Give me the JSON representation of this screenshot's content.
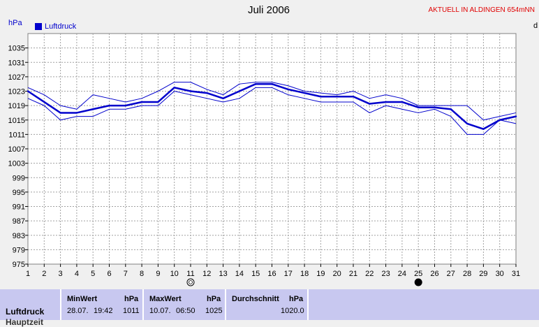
{
  "header": {
    "title": "Juli 2006",
    "location": "AKTUELL IN ALDINGEN 654mNN",
    "unit": "hPa",
    "legend_label": "Luftdruck",
    "edge_label": "d"
  },
  "colors": {
    "series": "#0000cc",
    "grid": "#a0a0a0",
    "plot_bg": "#ffffff",
    "stats_bg": "#c8c8f0"
  },
  "chart_data": {
    "type": "line",
    "ylabel": "hPa",
    "ylim": [
      975,
      1039
    ],
    "yticks": [
      975,
      979,
      983,
      987,
      991,
      995,
      999,
      1003,
      1007,
      1011,
      1015,
      1019,
      1023,
      1027,
      1031,
      1035
    ],
    "x": [
      1,
      2,
      3,
      4,
      5,
      6,
      7,
      8,
      9,
      10,
      11,
      12,
      13,
      14,
      15,
      16,
      17,
      18,
      19,
      20,
      21,
      22,
      23,
      24,
      25,
      26,
      27,
      28,
      29,
      30,
      31
    ],
    "grid": true,
    "legend_position": "top-left",
    "series": [
      {
        "name": "Luftdruck",
        "role": "mean",
        "values": [
          1023,
          1020,
          1017,
          1017,
          1018,
          1019,
          1019,
          1020,
          1020,
          1024,
          1023,
          1022.5,
          1021,
          1023,
          1025,
          1025,
          1023.5,
          1022.5,
          1021.5,
          1021.5,
          1021.5,
          1019.5,
          1020,
          1020,
          1018.5,
          1018.5,
          1018,
          1014,
          1012.5,
          1015,
          1016
        ]
      },
      {
        "role": "max",
        "values": [
          1024,
          1022,
          1019,
          1018,
          1022,
          1021,
          1020,
          1021,
          1023,
          1025.5,
          1025.5,
          1023.5,
          1022,
          1025,
          1025.5,
          1025.5,
          1024.5,
          1023,
          1022.5,
          1022,
          1023,
          1021,
          1022,
          1021,
          1019,
          1019,
          1019,
          1019,
          1015,
          1016,
          1017
        ]
      },
      {
        "role": "min",
        "values": [
          1021,
          1019,
          1015,
          1016,
          1016,
          1018,
          1018,
          1019,
          1019,
          1023,
          1022,
          1021,
          1020,
          1021,
          1024,
          1024,
          1022,
          1021,
          1020,
          1020,
          1020,
          1017,
          1019,
          1018,
          1017,
          1018,
          1016,
          1011,
          1011,
          1015,
          1014
        ]
      }
    ],
    "moon_phases": [
      {
        "day": 11,
        "phase": "full"
      },
      {
        "day": 25,
        "phase": "new"
      }
    ]
  },
  "stats": {
    "row_label": "Luftdruck",
    "row_label_next": "Hauptzeit",
    "min": {
      "header": "MinWert",
      "unit": "hPa",
      "date": "28.07.",
      "time": "19:42",
      "value": "1011"
    },
    "max": {
      "header": "MaxWert",
      "unit": "hPa",
      "date": "10.07.",
      "time": "06:50",
      "value": "1025"
    },
    "avg": {
      "header": "Durchschnitt",
      "unit": "hPa",
      "value": "1020.0"
    }
  }
}
